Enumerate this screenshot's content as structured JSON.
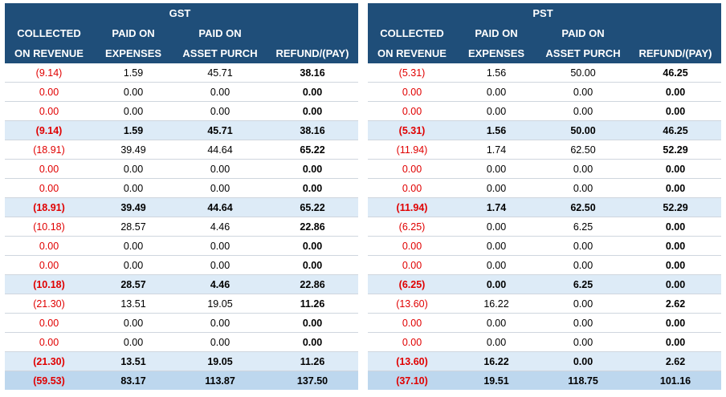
{
  "headers": {
    "gst_title": "GST",
    "pst_title": "PST",
    "col1_line1": "COLLECTED",
    "col1_line2": "ON REVENUE",
    "col2_line1": "PAID ON",
    "col2_line2": "EXPENSES",
    "col3_line1": "PAID ON",
    "col3_line2": "ASSET PURCH",
    "col4_line2": "REFUND/(PAY)"
  },
  "gst": {
    "rows": [
      {
        "type": "row",
        "cells": [
          "(9.14)",
          "1.59",
          "45.71",
          "38.16"
        ]
      },
      {
        "type": "row",
        "cells": [
          "0.00",
          "0.00",
          "0.00",
          "0.00"
        ]
      },
      {
        "type": "row",
        "cells": [
          "0.00",
          "0.00",
          "0.00",
          "0.00"
        ]
      },
      {
        "type": "sub",
        "cells": [
          "(9.14)",
          "1.59",
          "45.71",
          "38.16"
        ]
      },
      {
        "type": "row",
        "cells": [
          "(18.91)",
          "39.49",
          "44.64",
          "65.22"
        ]
      },
      {
        "type": "row",
        "cells": [
          "0.00",
          "0.00",
          "0.00",
          "0.00"
        ]
      },
      {
        "type": "row",
        "cells": [
          "0.00",
          "0.00",
          "0.00",
          "0.00"
        ]
      },
      {
        "type": "sub",
        "cells": [
          "(18.91)",
          "39.49",
          "44.64",
          "65.22"
        ]
      },
      {
        "type": "row",
        "cells": [
          "(10.18)",
          "28.57",
          "4.46",
          "22.86"
        ]
      },
      {
        "type": "row",
        "cells": [
          "0.00",
          "0.00",
          "0.00",
          "0.00"
        ]
      },
      {
        "type": "row",
        "cells": [
          "0.00",
          "0.00",
          "0.00",
          "0.00"
        ]
      },
      {
        "type": "sub",
        "cells": [
          "(10.18)",
          "28.57",
          "4.46",
          "22.86"
        ]
      },
      {
        "type": "row",
        "cells": [
          "(21.30)",
          "13.51",
          "19.05",
          "11.26"
        ]
      },
      {
        "type": "row",
        "cells": [
          "0.00",
          "0.00",
          "0.00",
          "0.00"
        ]
      },
      {
        "type": "row",
        "cells": [
          "0.00",
          "0.00",
          "0.00",
          "0.00"
        ]
      },
      {
        "type": "sub",
        "cells": [
          "(21.30)",
          "13.51",
          "19.05",
          "11.26"
        ]
      },
      {
        "type": "total",
        "cells": [
          "(59.53)",
          "83.17",
          "113.87",
          "137.50"
        ]
      }
    ]
  },
  "pst": {
    "rows": [
      {
        "type": "row",
        "cells": [
          "(5.31)",
          "1.56",
          "50.00",
          "46.25"
        ]
      },
      {
        "type": "row",
        "cells": [
          "0.00",
          "0.00",
          "0.00",
          "0.00"
        ]
      },
      {
        "type": "row",
        "cells": [
          "0.00",
          "0.00",
          "0.00",
          "0.00"
        ]
      },
      {
        "type": "sub",
        "cells": [
          "(5.31)",
          "1.56",
          "50.00",
          "46.25"
        ]
      },
      {
        "type": "row",
        "cells": [
          "(11.94)",
          "1.74",
          "62.50",
          "52.29"
        ]
      },
      {
        "type": "row",
        "cells": [
          "0.00",
          "0.00",
          "0.00",
          "0.00"
        ]
      },
      {
        "type": "row",
        "cells": [
          "0.00",
          "0.00",
          "0.00",
          "0.00"
        ]
      },
      {
        "type": "sub",
        "cells": [
          "(11.94)",
          "1.74",
          "62.50",
          "52.29"
        ]
      },
      {
        "type": "row",
        "cells": [
          "(6.25)",
          "0.00",
          "6.25",
          "0.00"
        ]
      },
      {
        "type": "row",
        "cells": [
          "0.00",
          "0.00",
          "0.00",
          "0.00"
        ]
      },
      {
        "type": "row",
        "cells": [
          "0.00",
          "0.00",
          "0.00",
          "0.00"
        ]
      },
      {
        "type": "sub",
        "cells": [
          "(6.25)",
          "0.00",
          "6.25",
          "0.00"
        ]
      },
      {
        "type": "row",
        "cells": [
          "(13.60)",
          "16.22",
          "0.00",
          "2.62"
        ]
      },
      {
        "type": "row",
        "cells": [
          "0.00",
          "0.00",
          "0.00",
          "0.00"
        ]
      },
      {
        "type": "row",
        "cells": [
          "0.00",
          "0.00",
          "0.00",
          "0.00"
        ]
      },
      {
        "type": "sub",
        "cells": [
          "(13.60)",
          "16.22",
          "0.00",
          "2.62"
        ]
      },
      {
        "type": "total",
        "cells": [
          "(37.10)",
          "19.51",
          "118.75",
          "101.16"
        ]
      }
    ]
  }
}
